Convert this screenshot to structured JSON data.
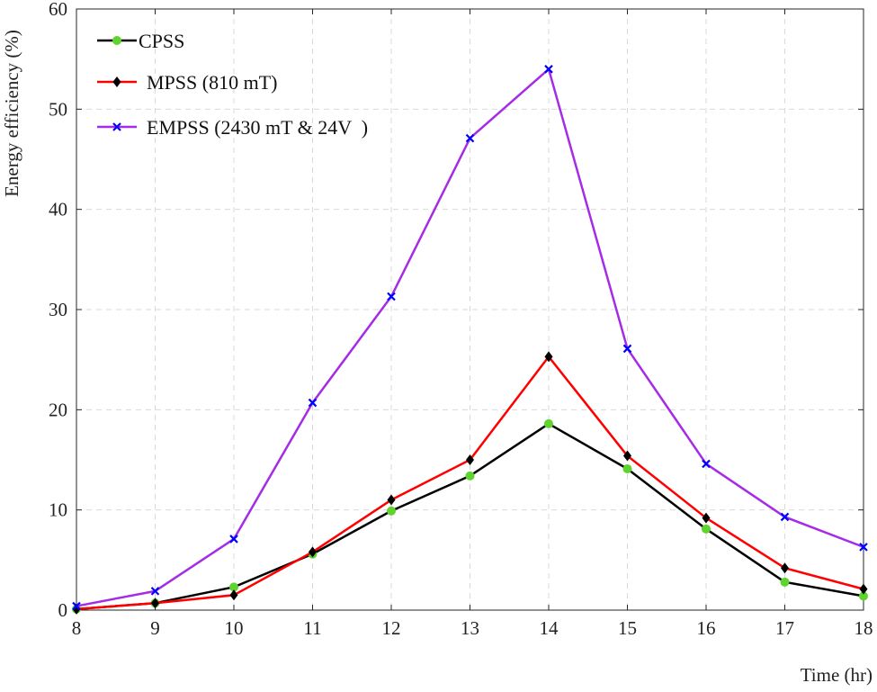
{
  "chart_data": {
    "type": "line",
    "title": "",
    "xlabel": "Time (hr)",
    "ylabel": "Energy efficiency (%)",
    "xlim": [
      8,
      18
    ],
    "ylim": [
      0,
      60
    ],
    "x": [
      8,
      9,
      10,
      11,
      12,
      13,
      14,
      15,
      16,
      17,
      18
    ],
    "xticks": [
      "8",
      "9",
      "10",
      "11",
      "12",
      "13",
      "14",
      "15",
      "16",
      "17",
      "18"
    ],
    "yticks": [
      "0",
      "10",
      "20",
      "30",
      "40",
      "50",
      "60"
    ],
    "grid": true,
    "legend_position": "top-left",
    "series": [
      {
        "name": "CPSS",
        "line_color": "#000000",
        "marker": "circle",
        "marker_color": "#5fd32e",
        "values": [
          0.1,
          0.7,
          2.3,
          5.6,
          9.9,
          13.4,
          18.6,
          14.1,
          8.1,
          2.8,
          1.4
        ]
      },
      {
        "name": "MPSS (810 mT)",
        "line_color": "#ff0000",
        "marker": "diamond",
        "marker_color": "#000000",
        "values": [
          0.1,
          0.7,
          1.5,
          5.8,
          11.0,
          15.0,
          25.3,
          15.4,
          9.2,
          4.2,
          2.1
        ]
      },
      {
        "name": "EMPSS (2430 mT & 24V  )",
        "line_color": "#a52be6",
        "marker": "x",
        "marker_color": "#0000ff",
        "values": [
          0.4,
          1.9,
          7.1,
          20.7,
          31.3,
          47.1,
          54.0,
          26.1,
          14.6,
          9.3,
          6.3
        ]
      }
    ]
  }
}
